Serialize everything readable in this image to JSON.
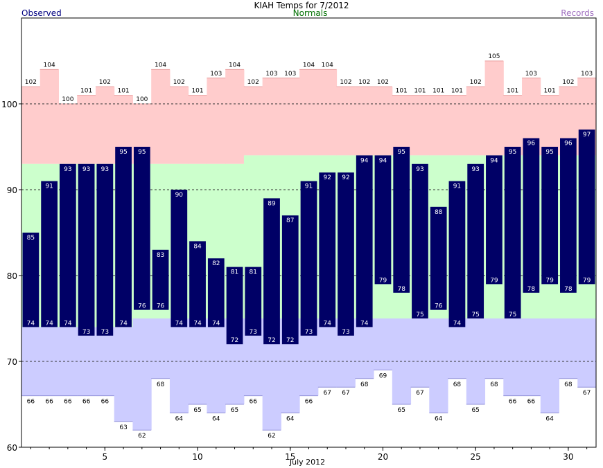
{
  "title": "KIAH Temps for 7/2012",
  "legend": {
    "observed": "Observed",
    "normals": "Normals",
    "records": "Records"
  },
  "xlabel": "July 2012",
  "colors": {
    "observed": "#000066",
    "normals": "#ccffcc",
    "record_high_band": "#ffcccc",
    "record_low_band": "#ccccff",
    "observed_text": "#000080",
    "normals_text": "#007000",
    "records_text": "#a070c0"
  },
  "chart_data": {
    "type": "bar",
    "x": [
      1,
      2,
      3,
      4,
      5,
      6,
      7,
      8,
      9,
      10,
      11,
      12,
      13,
      14,
      15,
      16,
      17,
      18,
      19,
      20,
      21,
      22,
      23,
      24,
      25,
      26,
      27,
      28,
      29,
      30,
      31
    ],
    "ylim": [
      60,
      110
    ],
    "yticks": [
      60,
      70,
      80,
      90,
      100
    ],
    "xticks": [
      5,
      10,
      15,
      20,
      25,
      30
    ],
    "gridlines": [
      70,
      80,
      90,
      100
    ],
    "series": [
      {
        "name": "Observed",
        "type": "range",
        "high": [
          85,
          91,
          93,
          93,
          93,
          95,
          95,
          83,
          90,
          84,
          82,
          81,
          81,
          89,
          87,
          91,
          92,
          92,
          94,
          94,
          95,
          93,
          88,
          91,
          93,
          94,
          95,
          96,
          95,
          96,
          97
        ],
        "low": [
          74,
          74,
          74,
          73,
          73,
          74,
          76,
          76,
          74,
          74,
          74,
          72,
          73,
          72,
          72,
          73,
          74,
          73,
          74,
          79,
          78,
          75,
          76,
          74,
          75,
          79,
          75,
          78,
          79,
          78,
          79
        ]
      },
      {
        "name": "Normals",
        "type": "range",
        "high": [
          93,
          93,
          93,
          93,
          93,
          93,
          93,
          93,
          93,
          93,
          93,
          93,
          94,
          94,
          94,
          94,
          94,
          94,
          94,
          94,
          94,
          94,
          94,
          94,
          94,
          94,
          94,
          94,
          94,
          94,
          94
        ],
        "low": [
          74,
          74,
          74,
          74,
          74,
          74,
          75,
          75,
          75,
          75,
          75,
          75,
          75,
          75,
          75,
          75,
          75,
          75,
          75,
          75,
          75,
          75,
          75,
          75,
          75,
          75,
          75,
          75,
          75,
          75,
          75
        ]
      },
      {
        "name": "Records",
        "type": "range",
        "high": [
          102,
          104,
          100,
          101,
          102,
          101,
          100,
          104,
          102,
          101,
          103,
          104,
          102,
          103,
          103,
          104,
          104,
          102,
          102,
          102,
          101,
          101,
          101,
          101,
          102,
          105,
          101,
          103,
          101,
          102,
          103
        ],
        "low": [
          66,
          66,
          66,
          66,
          66,
          63,
          62,
          68,
          64,
          65,
          64,
          65,
          66,
          62,
          64,
          66,
          67,
          67,
          68,
          69,
          65,
          67,
          64,
          68,
          65,
          68,
          66,
          66,
          64,
          68,
          67
        ]
      }
    ]
  }
}
